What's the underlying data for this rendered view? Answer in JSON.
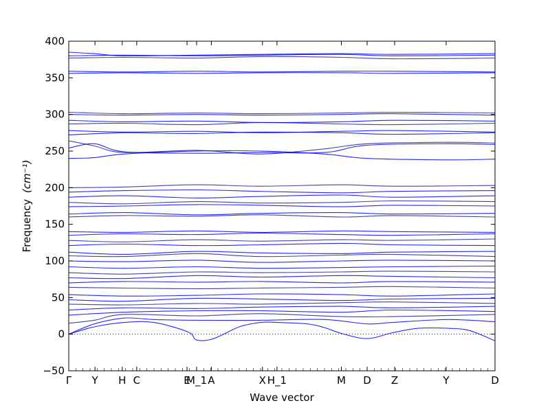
{
  "chart_data": {
    "type": "line",
    "title": "",
    "xlabel": "Wave vector",
    "ylabel": "Frequency",
    "ylabel_unit": "(cm⁻¹)",
    "ylim": [
      -50,
      400
    ],
    "yticks": [
      -50,
      0,
      50,
      100,
      150,
      200,
      250,
      300,
      350,
      400
    ],
    "grid": false,
    "legend": "none",
    "line_color": "#0000ff",
    "zero_line": {
      "y": 0,
      "style": "dotted"
    },
    "high_symmetry_points": [
      {
        "label": "Γ",
        "x": 0
      },
      {
        "label": "Y",
        "x": 0.0615
      },
      {
        "label": "H",
        "x": 0.1255
      },
      {
        "label": "C",
        "x": 0.1595
      },
      {
        "label": "E",
        "x": 0.2775
      },
      {
        "label": "M_1",
        "x": 0.3
      },
      {
        "label": "A",
        "x": 0.3345
      },
      {
        "label": "X",
        "x": 0.4545
      },
      {
        "label": "H_1",
        "x": 0.4885
      },
      {
        "label": "M",
        "x": 0.6395
      },
      {
        "label": "D",
        "x": 0.7
      },
      {
        "label": "Z",
        "x": 0.7645
      },
      {
        "label": "Y",
        "x": 0.8855
      },
      {
        "label": "D",
        "x": 1.0
      }
    ],
    "x_range": [
      0,
      1
    ],
    "series": [
      {
        "x": [
          0,
          0.06,
          0.13,
          0.2,
          0.28,
          0.3,
          0.34,
          0.4,
          0.45,
          0.49,
          0.56,
          0.6,
          0.64,
          0.7,
          0.76,
          0.82,
          0.89,
          0.94,
          1.0
        ],
        "y": [
          0,
          10,
          16,
          16,
          3,
          -8,
          -6,
          10,
          16,
          16,
          14,
          9,
          1,
          -6,
          2,
          8,
          8,
          5,
          -9
        ]
      },
      {
        "x": [
          0,
          0.06,
          0.13,
          0.2,
          0.3,
          0.45,
          0.6,
          0.7,
          0.76,
          0.89,
          1.0
        ],
        "y": [
          0,
          14,
          22,
          20,
          19,
          19,
          20,
          14,
          16,
          20,
          17
        ]
      },
      {
        "x": [
          0,
          0.06,
          0.13,
          0.3,
          0.45,
          0.64,
          0.76,
          1.0
        ],
        "y": [
          15,
          19,
          27,
          25,
          28,
          24,
          24,
          27
        ]
      },
      {
        "x": [
          0,
          0.13,
          0.3,
          0.45,
          0.64,
          0.76,
          1.0
        ],
        "y": [
          26,
          30,
          32,
          32,
          30,
          33,
          31
        ]
      },
      {
        "x": [
          0,
          0.13,
          0.3,
          0.45,
          0.64,
          0.76,
          1.0
        ],
        "y": [
          33,
          36,
          35,
          37,
          38,
          36,
          38
        ]
      },
      {
        "x": [
          0,
          0.13,
          0.3,
          0.45,
          0.64,
          0.76,
          1.0
        ],
        "y": [
          41,
          40,
          42,
          41,
          43,
          44,
          42
        ]
      },
      {
        "x": [
          0,
          0.13,
          0.3,
          0.45,
          0.64,
          0.76,
          1.0
        ],
        "y": [
          47,
          45,
          49,
          48,
          46,
          48,
          49
        ]
      },
      {
        "x": [
          0,
          0.13,
          0.3,
          0.45,
          0.64,
          0.76,
          1.0
        ],
        "y": [
          54,
          52,
          53,
          55,
          54,
          52,
          55
        ]
      },
      {
        "x": [
          0,
          0.13,
          0.3,
          0.45,
          0.64,
          0.76,
          1.0
        ],
        "y": [
          64,
          63,
          62,
          63,
          64,
          65,
          63
        ]
      },
      {
        "x": [
          0,
          0.13,
          0.3,
          0.45,
          0.64,
          0.76,
          1.0
        ],
        "y": [
          70,
          72,
          71,
          72,
          70,
          72,
          71
        ]
      },
      {
        "x": [
          0,
          0.13,
          0.3,
          0.45,
          0.64,
          0.76,
          1.0
        ],
        "y": [
          77,
          76,
          80,
          78,
          80,
          79,
          77
        ]
      },
      {
        "x": [
          0,
          0.13,
          0.3,
          0.45,
          0.64,
          0.76,
          1.0
        ],
        "y": [
          84,
          82,
          85,
          84,
          85,
          86,
          85
        ]
      },
      {
        "x": [
          0,
          0.13,
          0.3,
          0.45,
          0.64,
          0.76,
          1.0
        ],
        "y": [
          92,
          90,
          92,
          90,
          91,
          92,
          93
        ]
      },
      {
        "x": [
          0,
          0.13,
          0.3,
          0.45,
          0.64,
          0.76,
          1.0
        ],
        "y": [
          100,
          99,
          101,
          98,
          100,
          101,
          100
        ]
      },
      {
        "x": [
          0,
          0.13,
          0.3,
          0.45,
          0.64,
          0.76,
          1.0
        ],
        "y": [
          107,
          106,
          110,
          106,
          108,
          109,
          106
        ]
      },
      {
        "x": [
          0,
          0.13,
          0.3,
          0.45,
          0.64,
          0.76,
          1.0
        ],
        "y": [
          112,
          109,
          113,
          111,
          110,
          112,
          113
        ]
      },
      {
        "x": [
          0,
          0.13,
          0.3,
          0.45,
          0.64,
          0.76,
          1.0
        ],
        "y": [
          121,
          123,
          121,
          122,
          124,
          122,
          121
        ]
      },
      {
        "x": [
          0,
          0.13,
          0.3,
          0.45,
          0.64,
          0.76,
          1.0
        ],
        "y": [
          128,
          126,
          129,
          127,
          129,
          128,
          130
        ]
      },
      {
        "x": [
          0,
          0.13,
          0.3,
          0.45,
          0.64,
          0.76,
          1.0
        ],
        "y": [
          135,
          137,
          136,
          138,
          136,
          135,
          137
        ]
      },
      {
        "x": [
          0,
          0.13,
          0.3,
          0.45,
          0.64,
          0.76,
          1.0
        ],
        "y": [
          140,
          139,
          141,
          139,
          141,
          140,
          139
        ]
      },
      {
        "x": [
          0,
          0.13,
          0.3,
          0.45,
          0.64,
          0.76,
          1.0
        ],
        "y": [
          160,
          162,
          161,
          163,
          160,
          162,
          160
        ]
      },
      {
        "x": [
          0,
          0.13,
          0.3,
          0.45,
          0.64,
          0.76,
          1.0
        ],
        "y": [
          164,
          166,
          163,
          165,
          166,
          164,
          165
        ]
      },
      {
        "x": [
          0,
          0.13,
          0.3,
          0.45,
          0.64,
          0.76,
          1.0
        ],
        "y": [
          174,
          175,
          177,
          176,
          174,
          176,
          175
        ]
      },
      {
        "x": [
          0,
          0.13,
          0.3,
          0.45,
          0.64,
          0.76,
          1.0
        ],
        "y": [
          180,
          178,
          181,
          179,
          180,
          182,
          181
        ]
      },
      {
        "x": [
          0,
          0.13,
          0.3,
          0.45,
          0.64,
          0.76,
          1.0
        ],
        "y": [
          187,
          189,
          186,
          188,
          190,
          187,
          189
        ]
      },
      {
        "x": [
          0,
          0.13,
          0.3,
          0.45,
          0.64,
          0.76,
          1.0
        ],
        "y": [
          194,
          196,
          197,
          195,
          193,
          195,
          196
        ]
      },
      {
        "x": [
          0,
          0.13,
          0.3,
          0.45,
          0.64,
          0.76,
          1.0
        ],
        "y": [
          200,
          201,
          204,
          202,
          204,
          202,
          203
        ]
      },
      {
        "x": [
          0,
          0.06,
          0.13,
          0.3,
          0.45,
          0.6,
          0.7,
          0.89,
          1.0
        ],
        "y": [
          240,
          241,
          246,
          250,
          250,
          246,
          240,
          238,
          239
        ]
      },
      {
        "x": [
          0,
          0.06,
          0.13,
          0.3,
          0.45,
          0.6,
          0.7,
          0.89,
          1.0
        ],
        "y": [
          254,
          260,
          249,
          247,
          248,
          248,
          258,
          260,
          259
        ]
      },
      {
        "x": [
          0,
          0.06,
          0.13,
          0.3,
          0.45,
          0.6,
          0.7,
          0.89,
          1.0
        ],
        "y": [
          264,
          257,
          248,
          251,
          246,
          253,
          260,
          262,
          261
        ]
      },
      {
        "x": [
          0,
          0.13,
          0.3,
          0.45,
          0.64,
          0.76,
          1.0
        ],
        "y": [
          272,
          275,
          274,
          276,
          275,
          273,
          275
        ]
      },
      {
        "x": [
          0,
          0.13,
          0.3,
          0.45,
          0.64,
          0.76,
          1.0
        ],
        "y": [
          278,
          276,
          277,
          275,
          277,
          278,
          276
        ]
      },
      {
        "x": [
          0,
          0.13,
          0.3,
          0.45,
          0.64,
          0.76,
          1.0
        ],
        "y": [
          287,
          288,
          286,
          289,
          287,
          286,
          288
        ]
      },
      {
        "x": [
          0,
          0.13,
          0.3,
          0.45,
          0.64,
          0.76,
          1.0
        ],
        "y": [
          292,
          290,
          291,
          289,
          290,
          292,
          291
        ]
      },
      {
        "x": [
          0,
          0.13,
          0.3,
          0.45,
          0.64,
          0.76,
          1.0
        ],
        "y": [
          300,
          299,
          300,
          299,
          300,
          301,
          299
        ]
      },
      {
        "x": [
          0,
          0.13,
          0.3,
          0.45,
          0.64,
          0.76,
          1.0
        ],
        "y": [
          303,
          301,
          302,
          301,
          302,
          303,
          302
        ]
      },
      {
        "x": [
          0,
          0.13,
          0.3,
          0.45,
          0.64,
          0.76,
          1.0
        ],
        "y": [
          356,
          357,
          356,
          357,
          357,
          356,
          357
        ]
      },
      {
        "x": [
          0,
          0.13,
          0.3,
          0.45,
          0.64,
          0.76,
          1.0
        ],
        "y": [
          359,
          358,
          359,
          358,
          359,
          359,
          358
        ]
      },
      {
        "x": [
          0,
          0.13,
          0.3,
          0.45,
          0.64,
          0.76,
          1.0
        ],
        "y": [
          377,
          378,
          377,
          379,
          378,
          376,
          377
        ]
      },
      {
        "x": [
          0,
          0.13,
          0.3,
          0.45,
          0.64,
          0.76,
          1.0
        ],
        "y": [
          380,
          381,
          380,
          381,
          382,
          380,
          381
        ]
      },
      {
        "x": [
          0,
          0.06,
          0.13,
          0.3,
          0.45,
          0.64,
          0.76,
          1.0
        ],
        "y": [
          385,
          383,
          380,
          381,
          382,
          383,
          382,
          383
        ]
      }
    ]
  }
}
